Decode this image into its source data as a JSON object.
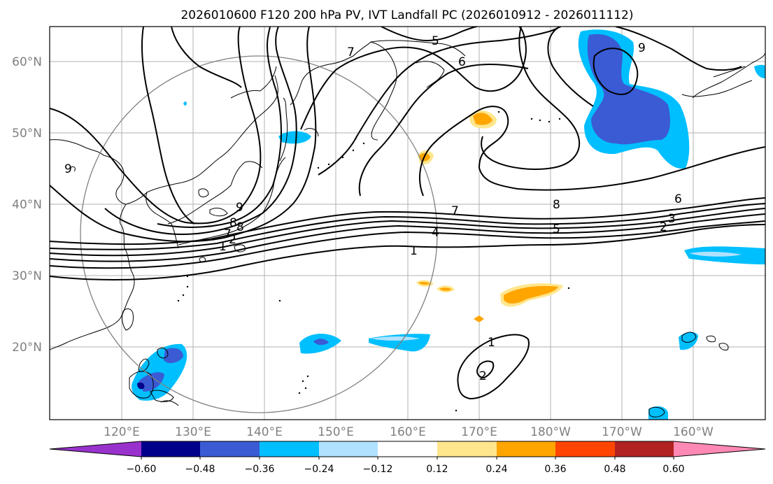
{
  "title": "2026010600 F120 200 hPa PV, IVT Landfall PC (2026010912 - 2026011112)",
  "map": {
    "lat_labels": [
      "60°N",
      "50°N",
      "40°N",
      "30°N",
      "20°N"
    ],
    "lon_labels": [
      "120°E",
      "130°E",
      "140°E",
      "150°E",
      "160°E",
      "170°E",
      "180°W",
      "170°W",
      "160°W"
    ],
    "contour_labels": [
      "1",
      "2",
      "3",
      "4",
      "5",
      "6",
      "7",
      "8",
      "9",
      "1",
      "2",
      "5",
      "6",
      "7",
      "8",
      "9",
      "1",
      "2",
      "7",
      "8",
      "9"
    ]
  },
  "colorbar": {
    "colors": [
      "#9932cc",
      "#00008b",
      "#3a5bd4",
      "#00bfff",
      "#b0e2ff",
      "#ffffff",
      "#ffe68c",
      "#ffa500",
      "#ff4500",
      "#b22222",
      "#ff89b4"
    ],
    "tick_labels": [
      "−0.60",
      "−0.48",
      "−0.36",
      "−0.24",
      "−0.12",
      "0.12",
      "0.24",
      "0.36",
      "0.48",
      "0.60"
    ]
  }
}
